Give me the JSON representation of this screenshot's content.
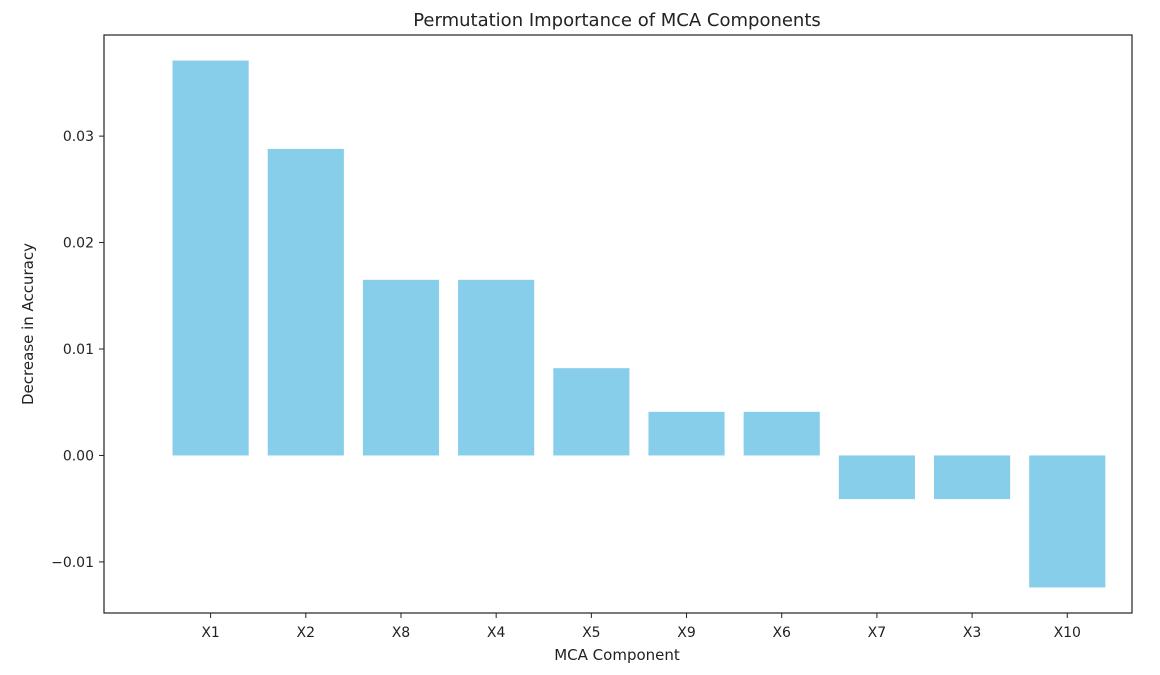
{
  "chart_data": {
    "type": "bar",
    "title": "Permutation Importance of MCA Components",
    "xlabel": "MCA Component",
    "ylabel": "Decrease in Accuracy",
    "categories": [
      "X1",
      "X2",
      "X8",
      "X4",
      "X5",
      "X9",
      "X6",
      "X7",
      "X3",
      "X10"
    ],
    "values": [
      0.0371,
      0.0288,
      0.0165,
      0.0165,
      0.0082,
      0.0041,
      0.0041,
      -0.0041,
      -0.0041,
      -0.0124
    ],
    "ylim": [
      -0.0148,
      0.0395
    ],
    "yticks": [
      -0.01,
      0.0,
      0.01,
      0.02,
      0.03
    ],
    "ytick_labels": [
      "−0.01",
      "0.00",
      "0.01",
      "0.02",
      "0.03"
    ],
    "bar_color": "#87ceeb",
    "grid": false,
    "legend": false
  }
}
